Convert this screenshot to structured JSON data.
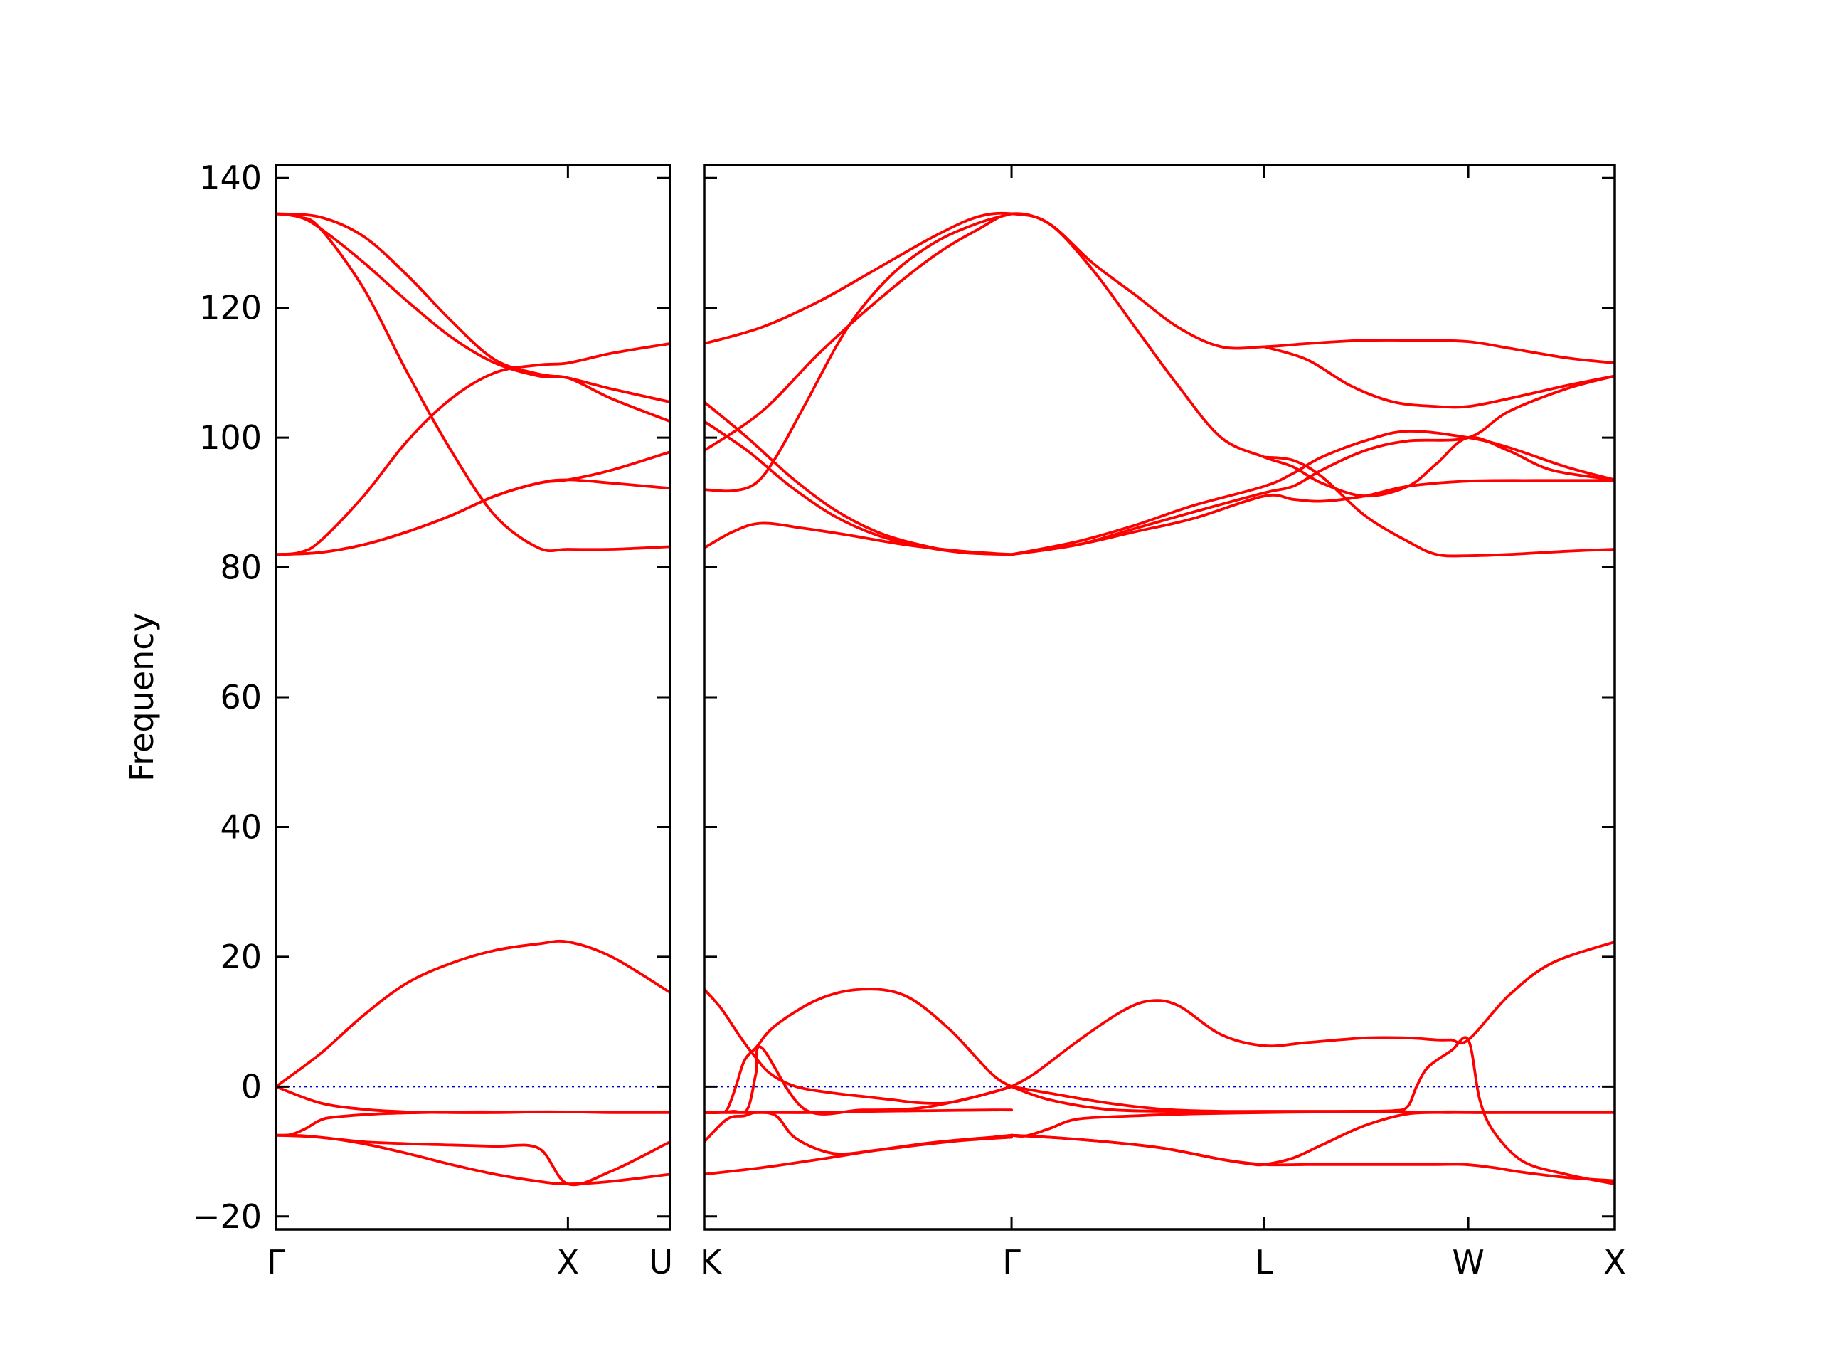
{
  "chart_data": {
    "type": "line",
    "title": "",
    "ylabel": "Frequency",
    "ylim": [
      -22,
      142
    ],
    "yticks": [
      -20,
      0,
      20,
      40,
      60,
      80,
      100,
      120,
      140
    ],
    "ytick_labels": [
      "−20",
      "0",
      "20",
      "40",
      "60",
      "80",
      "100",
      "120",
      "140"
    ],
    "grid": false,
    "colors": {
      "bands": "#ff0000",
      "zero_line": "#0000cc"
    },
    "panels": [
      {
        "x_range": [
          0,
          1.35
        ],
        "xtick_positions": [
          0,
          1.0
        ],
        "xtick_labels": [
          "Γ",
          "X"
        ],
        "end_label": "U",
        "bands": [
          {
            "x": [
              0,
              0.15,
              0.3,
              0.45,
              0.6,
              0.75,
              0.9,
              1.0,
              1.15,
              1.35
            ],
            "y": [
              0,
              5,
              11,
              16,
              19,
              21,
              22,
              22.3,
              20,
              14.5
            ]
          },
          {
            "x": [
              0,
              0.15,
              0.3,
              0.45,
              0.6,
              0.75,
              0.9,
              1.0,
              1.15,
              1.35
            ],
            "y": [
              0,
              -2.5,
              -3.5,
              -3.9,
              -4,
              -4,
              -3.9,
              -3.9,
              -3.9,
              -3.9
            ]
          },
          {
            "x": [
              0,
              0.05,
              0.1,
              0.15,
              0.2,
              0.35,
              0.5,
              0.65,
              0.8,
              1.0,
              1.15,
              1.35
            ],
            "y": [
              -7.5,
              -7.4,
              -6.5,
              -5.2,
              -4.7,
              -4.2,
              -4,
              -3.9,
              -3.9,
              -3.9,
              -4,
              -4
            ]
          },
          {
            "x": [
              0,
              0.15,
              0.3,
              0.45,
              0.6,
              0.75,
              0.9,
              1.0,
              1.15,
              1.35
            ],
            "y": [
              -7.5,
              -7.8,
              -8.8,
              -10.3,
              -12,
              -13.5,
              -14.6,
              -15,
              -14.6,
              -13.5
            ]
          },
          {
            "x": [
              0,
              0.1,
              0.3,
              0.45,
              0.6,
              0.75,
              0.9,
              1.0,
              1.15,
              1.35
            ],
            "y": [
              -7.5,
              -7.6,
              -8.5,
              -8.8,
              -9,
              -9.2,
              -9.5,
              -15,
              -13,
              -8.5
            ]
          },
          {
            "x": [
              0,
              0.08,
              0.15,
              0.3,
              0.45,
              0.6,
              0.75,
              0.9,
              1.0,
              1.15,
              1.35
            ],
            "y": [
              134.5,
              134,
              132.3,
              123,
              110,
              98,
              88,
              83,
              82.8,
              82.8,
              83.2
            ]
          },
          {
            "x": [
              0,
              0.08,
              0.15,
              0.3,
              0.45,
              0.6,
              0.75,
              0.9,
              1.0,
              1.15,
              1.35
            ],
            "y": [
              134.5,
              134,
              132.3,
              127,
              121,
              115.5,
              111.5,
              109.5,
              109.2,
              106,
              102.5
            ]
          },
          {
            "x": [
              0,
              0.08,
              0.15,
              0.3,
              0.45,
              0.6,
              0.75,
              0.9,
              1.0,
              1.15,
              1.35
            ],
            "y": [
              82,
              82.3,
              84,
              91,
              99.5,
              106,
              110,
              111.2,
              111.5,
              113,
              114.5
            ]
          },
          {
            "x": [
              0,
              0.15,
              0.3,
              0.45,
              0.6,
              0.75,
              0.9,
              1.0,
              1.15,
              1.35
            ],
            "y": [
              82,
              82.3,
              83.5,
              85.5,
              88,
              91,
              93,
              93.5,
              95,
              97.8
            ]
          },
          {
            "x": [
              0,
              0.15,
              0.3,
              0.45,
              0.6,
              0.75,
              0.9,
              1.0,
              1.15,
              1.35
            ],
            "y": [
              82,
              82.3,
              83.5,
              85.5,
              88,
              91,
              93,
              93.5,
              93,
              92.2
            ]
          },
          {
            "x": [
              0,
              0.15,
              0.3,
              0.45,
              0.6,
              0.75,
              0.9,
              1.0,
              1.15,
              1.35
            ],
            "y": [
              134.5,
              134,
              131,
              125,
              118,
              112,
              109.8,
              109.2,
              107.5,
              105.5
            ]
          }
        ]
      },
      {
        "x_range": [
          0,
          3.17
        ],
        "xtick_positions": [
          0,
          1.07,
          1.95,
          2.66,
          3.17
        ],
        "xtick_labels": [
          "K",
          "Γ",
          "L",
          "W",
          "X"
        ],
        "bands": [
          {
            "x": [
              0,
              0.06,
              0.12,
              0.17,
              0.23,
              0.32,
              0.45,
              0.55,
              0.65,
              0.75,
              0.85,
              0.95,
              1.07
            ],
            "y": [
              15,
              12,
              8,
              5,
              2,
              0,
              -1,
              -1.5,
              -2,
              -2.5,
              -2.5,
              -1.5,
              0
            ]
          },
          {
            "x": [
              0,
              0.05,
              0.08,
              0.11,
              0.14,
              0.18,
              0.25,
              0.4,
              0.55,
              0.7,
              0.85,
              1.0,
              1.07
            ],
            "y": [
              -4,
              -4,
              -3.5,
              0,
              4,
              6,
              9.5,
              13.5,
              15,
              14,
              9,
              2,
              0
            ]
          },
          {
            "x": [
              0,
              0.05,
              0.1,
              0.15,
              0.18,
              0.2,
              0.35,
              0.55,
              0.75,
              0.95,
              1.07
            ],
            "y": [
              -4,
              -4,
              -3.8,
              -3.5,
              2,
              6,
              -3.5,
              -3.6,
              -3.3,
              -1.5,
              0
            ]
          },
          {
            "x": [
              0,
              0.08,
              0.14,
              0.18,
              0.25,
              0.32,
              0.45,
              0.6,
              0.75,
              0.9,
              1.07
            ],
            "y": [
              -8.5,
              -5,
              -4.5,
              -4,
              -4.5,
              -8,
              -10.3,
              -9.8,
              -9,
              -8.3,
              -7.8
            ]
          },
          {
            "x": [
              0,
              0.2,
              0.4,
              0.6,
              0.8,
              1.0,
              1.07
            ],
            "y": [
              -13.5,
              -12.5,
              -11.2,
              -9.8,
              -8.6,
              -7.8,
              -7.5
            ]
          },
          {
            "x": [
              0,
              0.2,
              0.4,
              0.6,
              0.8,
              1.0,
              1.07
            ],
            "y": [
              -4,
              -4,
              -4,
              -3.8,
              -3.7,
              -3.6,
              -3.6
            ]
          },
          {
            "x": [
              1.07,
              1.15,
              1.3,
              1.45,
              1.55,
              1.65,
              1.8,
              1.95,
              2.1,
              2.3,
              2.45,
              2.55,
              2.6,
              2.66,
              2.8,
              2.95,
              3.17
            ],
            "y": [
              0,
              2,
              7,
              11.5,
              13.2,
              12.5,
              8,
              6.3,
              6.8,
              7.5,
              7.5,
              7.2,
              7.2,
              7.2,
              14,
              19,
              22.3
            ]
          },
          {
            "x": [
              1.07,
              1.2,
              1.4,
              1.6,
              1.8,
              1.95,
              2.2,
              2.4,
              2.45,
              2.48,
              2.52,
              2.6,
              2.66,
              2.7,
              2.75,
              2.85,
              3.0,
              3.17
            ],
            "y": [
              0,
              -1,
              -2.5,
              -3.5,
              -3.8,
              -3.8,
              -3.8,
              -3.7,
              -3,
              0,
              3,
              5.5,
              7.2,
              -2,
              -7,
              -11.5,
              -13.5,
              -15
            ]
          },
          {
            "x": [
              1.07,
              1.2,
              1.4,
              1.6,
              1.8,
              1.95,
              2.2,
              2.5,
              2.65,
              2.7,
              3.0,
              3.17
            ],
            "y": [
              0,
              -2,
              -3.5,
              -3.8,
              -3.9,
              -3.9,
              -3.9,
              -3.9,
              -3.9,
              -4,
              -3.9,
              -3.9
            ]
          },
          {
            "x": [
              1.07,
              1.12,
              1.2,
              1.3,
              1.5,
              1.7,
              1.95,
              2.2,
              2.5,
              2.66,
              2.8,
              3.0,
              3.17
            ],
            "y": [
              -7.5,
              -7.6,
              -6.5,
              -5,
              -4.5,
              -4.2,
              -4,
              -3.9,
              -3.9,
              -3.9,
              -3.9,
              -3.9,
              -3.9
            ]
          },
          {
            "x": [
              1.07,
              1.2,
              1.4,
              1.6,
              1.8,
              1.95,
              2.1,
              2.3,
              2.45,
              2.55,
              2.65,
              2.75,
              2.85,
              3.0,
              3.17
            ],
            "y": [
              -7.5,
              -7.8,
              -8.5,
              -9.5,
              -11.2,
              -12,
              -12,
              -12,
              -12,
              -12,
              -12,
              -12.5,
              -13.2,
              -14,
              -14.5
            ]
          },
          {
            "x": [
              1.07,
              1.2,
              1.4,
              1.6,
              1.8,
              1.9,
              1.95,
              2.05,
              2.15,
              2.3,
              2.45,
              2.6,
              2.66,
              3.17
            ],
            "y": [
              -7.5,
              -7.8,
              -8.5,
              -9.5,
              -11.2,
              -11.9,
              -12,
              -11,
              -9,
              -6,
              -4.2,
              -4,
              -4,
              -4
            ]
          },
          {
            "x": [
              0,
              0.2,
              0.4,
              0.6,
              0.8,
              0.95,
              1.07,
              1.2,
              1.35,
              1.5,
              1.65,
              1.8,
              1.95,
              2.05,
              2.15,
              2.3,
              2.45,
              2.55,
              2.66,
              2.8,
              2.95,
              3.17
            ],
            "y": [
              114.5,
              117,
              121,
              126,
              131,
              134,
              134.5,
              133,
              126,
              117,
              108,
              100,
              97,
              95.5,
              93,
              91,
              92.5,
              96,
              100,
              98,
              95,
              93.5
            ]
          },
          {
            "x": [
              0,
              0.2,
              0.4,
              0.6,
              0.8,
              0.95,
              1.07,
              1.2,
              1.35,
              1.5,
              1.65,
              1.8,
              1.95,
              2.1,
              2.3,
              2.5,
              2.66,
              2.8,
              3.0,
              3.17
            ],
            "y": [
              98,
              104,
              113,
              121,
              128,
              132,
              134.5,
              133,
              127,
              122,
              117,
              114,
              114,
              114.5,
              115,
              115,
              114.8,
              113.8,
              112.3,
              111.5
            ]
          },
          {
            "x": [
              0,
              0.1,
              0.18,
              0.25,
              0.35,
              0.5,
              0.65,
              0.8,
              0.95,
              1.07
            ],
            "y": [
              92,
              91.8,
              93,
              97,
              105,
              117,
              125,
              130,
              133,
              134.5
            ]
          },
          {
            "x": [
              0,
              0.15,
              0.3,
              0.45,
              0.6,
              0.75,
              0.9,
              1.07
            ],
            "y": [
              105.5,
              100,
              94,
              89,
              85.5,
              83.5,
              82.3,
              82
            ]
          },
          {
            "x": [
              0,
              0.15,
              0.3,
              0.45,
              0.6,
              0.75,
              0.9,
              1.07
            ],
            "y": [
              102.5,
              98,
              92.5,
              88,
              85,
              83.3,
              82.3,
              82
            ]
          },
          {
            "x": [
              0,
              0.1,
              0.2,
              0.35,
              0.5,
              0.7,
              0.9,
              1.07
            ],
            "y": [
              83,
              85.5,
              86.8,
              86,
              85,
              83.5,
              82.5,
              82
            ]
          },
          {
            "x": [
              1.07,
              1.3,
              1.5,
              1.7,
              1.95,
              2.05,
              2.15,
              2.3,
              2.45,
              2.66,
              2.8,
              3.0,
              3.17
            ],
            "y": [
              82,
              84,
              86.5,
              89.5,
              92.5,
              94.5,
              97,
              99.5,
              101,
              100,
              98.5,
              95.5,
              93.5
            ]
          },
          {
            "x": [
              1.07,
              1.3,
              1.5,
              1.7,
              1.95,
              2.05,
              2.15,
              2.3,
              2.45,
              2.66,
              2.8,
              3.0,
              3.17
            ],
            "y": [
              82,
              83.5,
              86,
              88.5,
              91.5,
              92.5,
              95,
              98,
              99.5,
              100,
              104,
              107.5,
              109.5
            ]
          },
          {
            "x": [
              1.95,
              2.1,
              2.25,
              2.4,
              2.55,
              2.66,
              2.8,
              3.0,
              3.17
            ],
            "y": [
              114,
              112,
              108,
              105.5,
              104.8,
              104.8,
              106,
              108,
              109.5
            ]
          },
          {
            "x": [
              1.07,
              1.3,
              1.5,
              1.7,
              1.95,
              2.05,
              2.15,
              2.3,
              2.45,
              2.66,
              2.9,
              3.17
            ],
            "y": [
              82,
              83.5,
              85.5,
              87.5,
              91,
              90.5,
              90.2,
              91,
              92.5,
              93.3,
              93.4,
              93.4
            ]
          },
          {
            "x": [
              1.95,
              2.05,
              2.15,
              2.3,
              2.45,
              2.55,
              2.66,
              2.8,
              3.0,
              3.17
            ],
            "y": [
              97,
              96.5,
              94,
              88,
              84,
              82,
              81.8,
              82,
              82.5,
              82.8
            ]
          }
        ]
      }
    ]
  }
}
